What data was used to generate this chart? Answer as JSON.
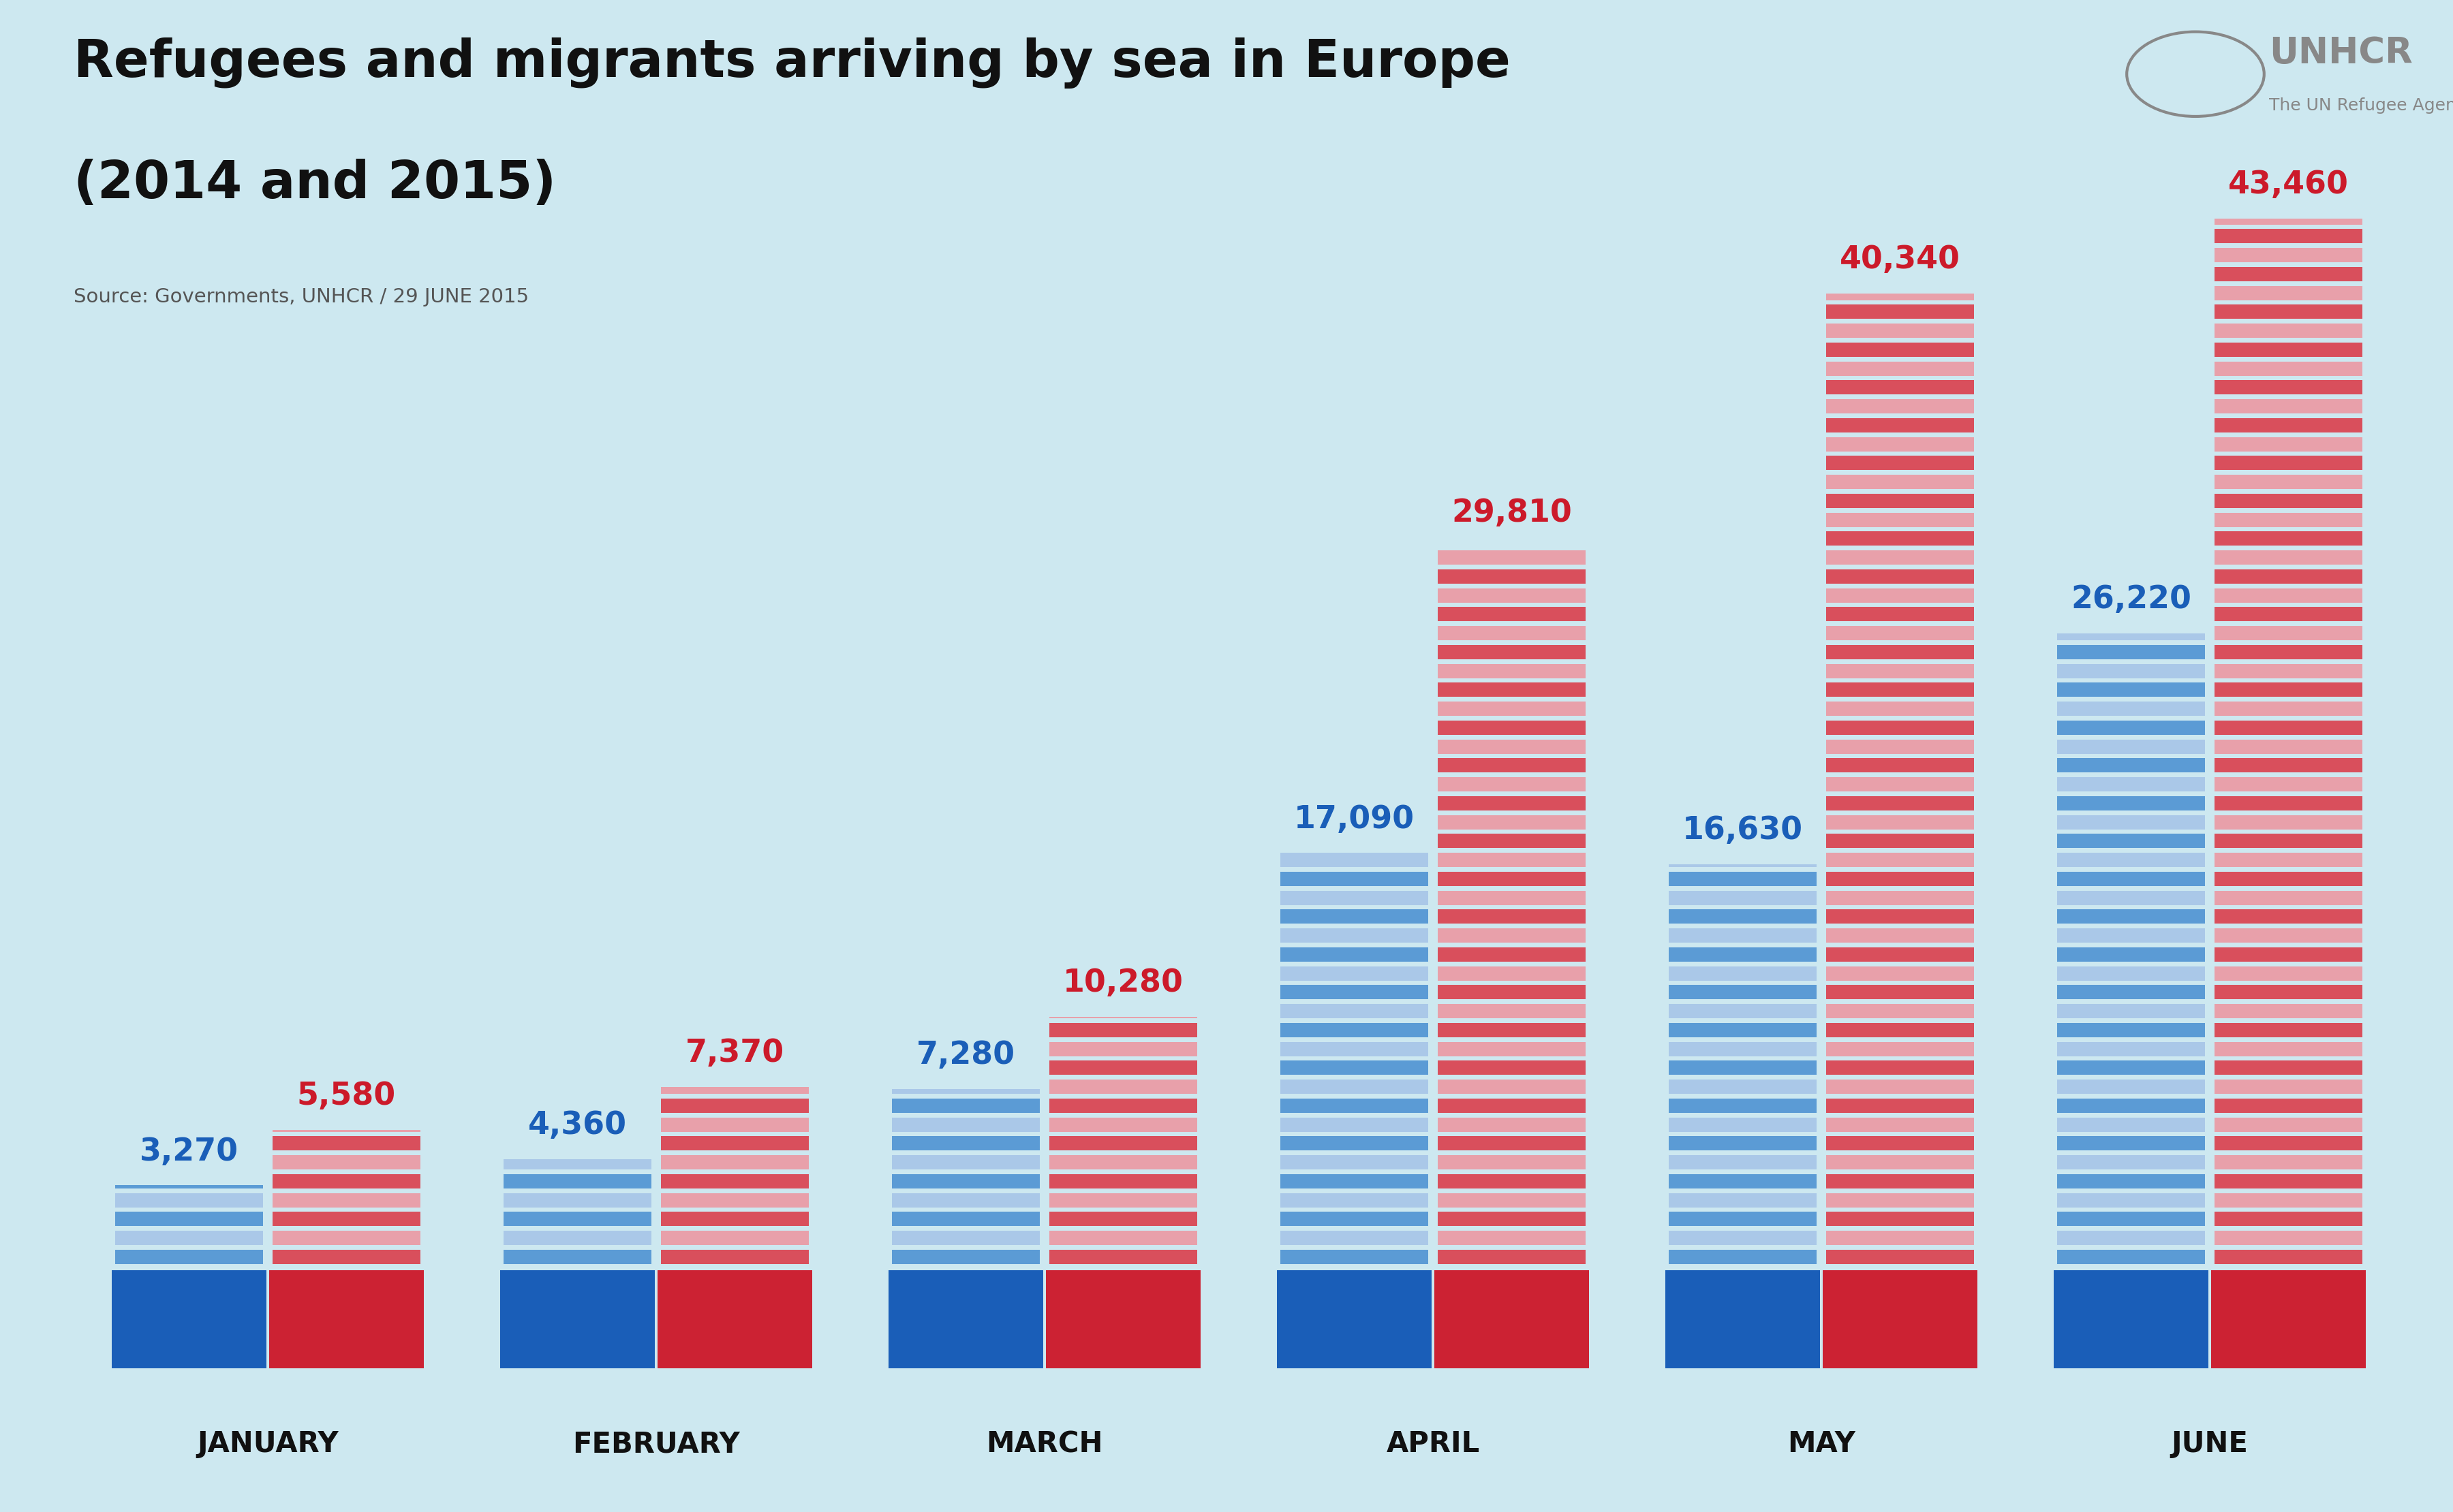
{
  "title_line1": "Refugees and migrants arriving by sea in Europe",
  "title_line2": "(2014 and 2015)",
  "source_text": "Source: Governments, UNHCR / 29 JUNE 2015",
  "background_color": "#cde8f0",
  "months": [
    "JANUARY",
    "FEBRUARY",
    "MARCH",
    "APRIL",
    "MAY",
    "JUNE"
  ],
  "values_2014": [
    3270,
    4360,
    7280,
    17090,
    16630,
    26220
  ],
  "values_2015": [
    5580,
    7370,
    10280,
    29810,
    40340,
    43460
  ],
  "labels_2014": [
    "3,270",
    "4,360",
    "7,280",
    "17,090",
    "16,630",
    "26,220"
  ],
  "labels_2015": [
    "5,580",
    "7,370",
    "10,280",
    "29,810",
    "40,340",
    "43,460"
  ],
  "color_2014_dark": "#5b9bd5",
  "color_2014_light": "#aac8e8",
  "color_2015_dark": "#d94f5c",
  "color_2015_light": "#e8a0aa",
  "color_2014_label": "#1a5eb8",
  "color_2015_label": "#cc1a2a",
  "color_2014_badge": "#1a5eb8",
  "color_2015_badge": "#cc2233",
  "badge_text_color": "#ffffff",
  "month_label_color": "#111111",
  "title_color": "#111111",
  "source_color": "#555555",
  "unhcr_color": "#888888",
  "max_value": 45000
}
